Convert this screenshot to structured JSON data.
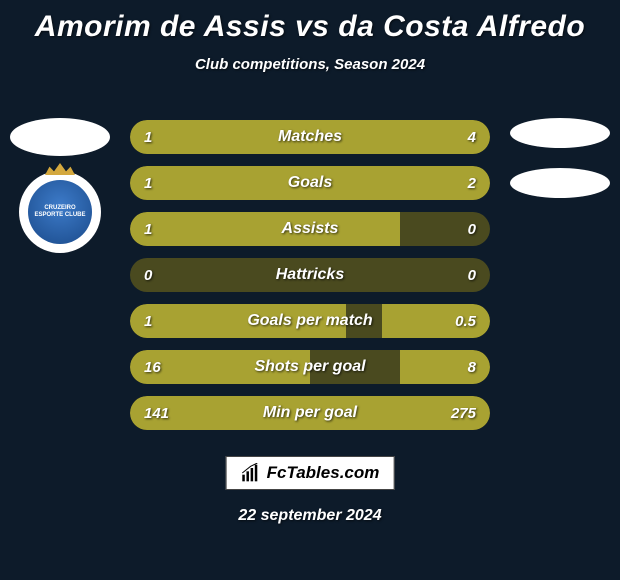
{
  "header": {
    "title": "Amorim de Assis vs da Costa Alfredo",
    "subtitle": "Club competitions, Season 2024"
  },
  "colors": {
    "background": "#0d1b2a",
    "bar_track": "#4a4a1f",
    "bar_fill": "#a8a232",
    "text": "#ffffff",
    "footer_bg": "#ffffff",
    "footer_text": "#000000"
  },
  "club_badge": {
    "outer_bg": "#ffffff",
    "inner_bg_top": "#3d7bc9",
    "inner_bg_bottom": "#1a4a8a",
    "crown_color": "#d4a83e",
    "text_lines": "CRUZEIRO ESPORTE CLUBE"
  },
  "stats": [
    {
      "label": "Matches",
      "left_val": "1",
      "right_val": "4",
      "left_pct": 20,
      "right_pct": 80
    },
    {
      "label": "Goals",
      "left_val": "1",
      "right_val": "2",
      "left_pct": 33,
      "right_pct": 67
    },
    {
      "label": "Assists",
      "left_val": "1",
      "right_val": "0",
      "left_pct": 75,
      "right_pct": 0
    },
    {
      "label": "Hattricks",
      "left_val": "0",
      "right_val": "0",
      "left_pct": 0,
      "right_pct": 0
    },
    {
      "label": "Goals per match",
      "left_val": "1",
      "right_val": "0.5",
      "left_pct": 60,
      "right_pct": 30
    },
    {
      "label": "Shots per goal",
      "left_val": "16",
      "right_val": "8",
      "left_pct": 50,
      "right_pct": 25
    },
    {
      "label": "Min per goal",
      "left_val": "141",
      "right_val": "275",
      "left_pct": 34,
      "right_pct": 66
    }
  ],
  "bar": {
    "height": 34,
    "radius": 17,
    "gap": 12,
    "label_fontsize": 16,
    "value_fontsize": 15
  },
  "footer": {
    "brand": "FcTables.com",
    "date": "22 september 2024"
  }
}
